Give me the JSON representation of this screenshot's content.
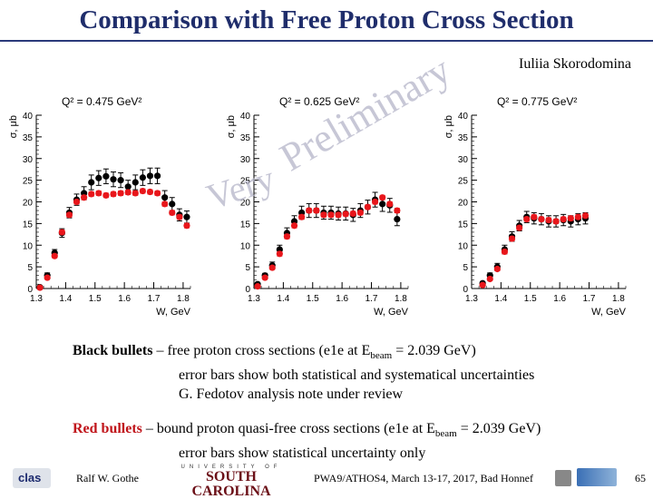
{
  "slide": {
    "title": "Comparison with Free Proton Cross Section",
    "author": "Iuliia Skorodomina",
    "watermark_line1": "Very",
    "watermark_line2": "Preliminary"
  },
  "legend": {
    "black_label": "Black bullets",
    "black_dash": " – ",
    "black_text_a": "free proton cross sections (e1e at E",
    "black_sub": "beam",
    "black_text_b": " = 2.039 GeV)",
    "black_line2": "error bars show both statistical and systematical uncertainties",
    "black_line3": "G. Fedotov analysis note under review",
    "red_label": "Red bullets",
    "red_dash": " – ",
    "red_text_a": "bound proton quasi-free cross sections (e1e at E",
    "red_sub": "beam",
    "red_text_b": " = 2.039 GeV)",
    "red_line2": "error bars show statistical uncertainty only"
  },
  "footer": {
    "presenter": "Ralf W. Gothe",
    "university_top": "UNIVERSITY OF",
    "university_main": "SOUTH CAROLINA",
    "clas_logo": "clas",
    "conference": "PWA9/ATHOS4, March 13-17, 2017, Bad Honnef",
    "page_number": "65"
  },
  "colors": {
    "title": "#1f2d6b",
    "black_series": "#000000",
    "red_series": "#e8161b",
    "red_label": "#c0141a"
  },
  "chart_data": [
    {
      "type": "scatter",
      "title": "Q² = 0.475 GeV²",
      "xlabel": "W, GeV",
      "ylabel": "σ, μb",
      "xlim": [
        1.3,
        1.825
      ],
      "ylim": [
        0,
        40
      ],
      "xticks": [
        "1.3",
        "1.4",
        "1.5",
        "1.6",
        "1.7",
        "1.8"
      ],
      "yticks": [
        "0",
        "5",
        "10",
        "15",
        "20",
        "25",
        "30",
        "35",
        "40"
      ],
      "series": [
        {
          "name": "Black bullets",
          "x": [
            1.3125,
            1.3375,
            1.3625,
            1.3875,
            1.4125,
            1.4375,
            1.4625,
            1.4875,
            1.5125,
            1.5375,
            1.5625,
            1.5875,
            1.6125,
            1.6375,
            1.6625,
            1.6875,
            1.7125,
            1.7375,
            1.7625,
            1.7875,
            1.8125
          ],
          "y": [
            0.3,
            3.0,
            8.2,
            12.8,
            17.5,
            20.5,
            22.0,
            24.5,
            25.5,
            25.9,
            25.2,
            25.0,
            23.5,
            24.5,
            25.6,
            26.0,
            26.0,
            21.0,
            19.5,
            17.0,
            16.5
          ],
          "err": [
            0.2,
            0.6,
            0.8,
            1.0,
            1.2,
            1.3,
            1.5,
            1.7,
            1.7,
            1.7,
            1.7,
            1.7,
            1.5,
            1.7,
            1.8,
            1.8,
            1.8,
            1.6,
            1.5,
            1.4,
            1.4
          ]
        },
        {
          "name": "Red bullets",
          "x": [
            1.3125,
            1.3375,
            1.3625,
            1.3875,
            1.4125,
            1.4375,
            1.4625,
            1.4875,
            1.5125,
            1.5375,
            1.5625,
            1.5875,
            1.6125,
            1.6375,
            1.6625,
            1.6875,
            1.7125,
            1.7375,
            1.7625,
            1.7875,
            1.8125
          ],
          "y": [
            0.2,
            2.5,
            7.5,
            13.0,
            17.0,
            20.0,
            21.0,
            21.8,
            22.0,
            21.5,
            21.8,
            22.0,
            22.2,
            22.0,
            22.5,
            22.3,
            22.0,
            19.5,
            17.5,
            16.5,
            14.5
          ],
          "err": [
            0.1,
            0.3,
            0.4,
            0.5,
            0.5,
            0.5,
            0.5,
            0.5,
            0.5,
            0.5,
            0.5,
            0.5,
            0.5,
            0.5,
            0.5,
            0.5,
            0.5,
            0.5,
            0.5,
            0.5,
            0.5
          ]
        }
      ]
    },
    {
      "type": "scatter",
      "title": "Q² = 0.625 GeV²",
      "xlabel": "W, GeV",
      "ylabel": "σ, μb",
      "xlim": [
        1.3,
        1.825
      ],
      "ylim": [
        0,
        40
      ],
      "xticks": [
        "1.3",
        "1.4",
        "1.5",
        "1.6",
        "1.7",
        "1.8"
      ],
      "yticks": [
        "0",
        "5",
        "10",
        "15",
        "20",
        "25",
        "30",
        "35",
        "40"
      ],
      "series": [
        {
          "name": "Black bullets",
          "x": [
            1.3125,
            1.3375,
            1.3625,
            1.3875,
            1.4125,
            1.4375,
            1.4625,
            1.4875,
            1.5125,
            1.5375,
            1.5625,
            1.5875,
            1.6125,
            1.6375,
            1.6625,
            1.6875,
            1.7125,
            1.7375,
            1.7625,
            1.7875
          ],
          "y": [
            1.0,
            3.0,
            5.3,
            9.0,
            12.8,
            15.5,
            17.5,
            18.0,
            18.0,
            17.5,
            17.5,
            17.3,
            17.3,
            17.0,
            18.0,
            18.8,
            20.5,
            19.5,
            19.2,
            16.0
          ],
          "err": [
            0.3,
            0.5,
            0.8,
            1.0,
            1.2,
            1.3,
            1.5,
            1.6,
            1.6,
            1.5,
            1.5,
            1.5,
            1.5,
            1.5,
            1.6,
            1.6,
            1.7,
            1.7,
            1.6,
            1.5
          ]
        },
        {
          "name": "Red bullets",
          "x": [
            1.3125,
            1.3375,
            1.3625,
            1.3875,
            1.4125,
            1.4375,
            1.4625,
            1.4875,
            1.5125,
            1.5375,
            1.5625,
            1.5875,
            1.6125,
            1.6375,
            1.6625,
            1.6875,
            1.7125,
            1.7375,
            1.7625,
            1.7875
          ],
          "y": [
            0.5,
            2.5,
            4.8,
            8.0,
            12.0,
            14.5,
            16.5,
            18.0,
            18.0,
            17.0,
            17.0,
            17.0,
            17.2,
            17.3,
            17.5,
            18.8,
            20.0,
            21.0,
            19.5,
            18.0
          ],
          "err": [
            0.2,
            0.3,
            0.4,
            0.5,
            0.5,
            0.5,
            0.5,
            0.5,
            0.5,
            0.5,
            0.5,
            0.5,
            0.5,
            0.5,
            0.5,
            0.5,
            0.5,
            0.5,
            0.5,
            0.5
          ]
        }
      ]
    },
    {
      "type": "scatter",
      "title": "Q² = 0.775 GeV²",
      "xlabel": "W, GeV",
      "ylabel": "σ, μb",
      "xlim": [
        1.3,
        1.825
      ],
      "ylim": [
        0,
        40
      ],
      "xticks": [
        "1.3",
        "1.4",
        "1.5",
        "1.6",
        "1.7",
        "1.8"
      ],
      "yticks": [
        "0",
        "5",
        "10",
        "15",
        "20",
        "25",
        "30",
        "35",
        "40"
      ],
      "series": [
        {
          "name": "Black bullets",
          "x": [
            1.3375,
            1.3625,
            1.3875,
            1.4125,
            1.4375,
            1.4625,
            1.4875,
            1.5125,
            1.5375,
            1.5625,
            1.5875,
            1.6125,
            1.6375,
            1.6625,
            1.6875
          ],
          "y": [
            1.2,
            3.0,
            5.0,
            9.0,
            12.0,
            14.5,
            16.5,
            16.2,
            16.0,
            15.5,
            15.5,
            15.8,
            15.5,
            16.0,
            16.2
          ],
          "err": [
            0.4,
            0.6,
            0.8,
            1.0,
            1.1,
            1.2,
            1.3,
            1.3,
            1.3,
            1.3,
            1.3,
            1.3,
            1.3,
            1.3,
            1.3
          ]
        },
        {
          "name": "Red bullets",
          "x": [
            1.3375,
            1.3625,
            1.3875,
            1.4125,
            1.4375,
            1.4625,
            1.4875,
            1.5125,
            1.5375,
            1.5625,
            1.5875,
            1.6125,
            1.6375,
            1.6625,
            1.6875
          ],
          "y": [
            0.8,
            2.2,
            4.5,
            8.5,
            11.5,
            14.0,
            16.0,
            16.5,
            16.0,
            15.8,
            15.5,
            16.0,
            16.2,
            16.5,
            16.8
          ],
          "err": [
            0.2,
            0.3,
            0.4,
            0.5,
            0.5,
            0.5,
            0.5,
            0.5,
            0.5,
            0.5,
            0.5,
            0.5,
            0.5,
            0.5,
            0.5
          ]
        }
      ]
    }
  ]
}
